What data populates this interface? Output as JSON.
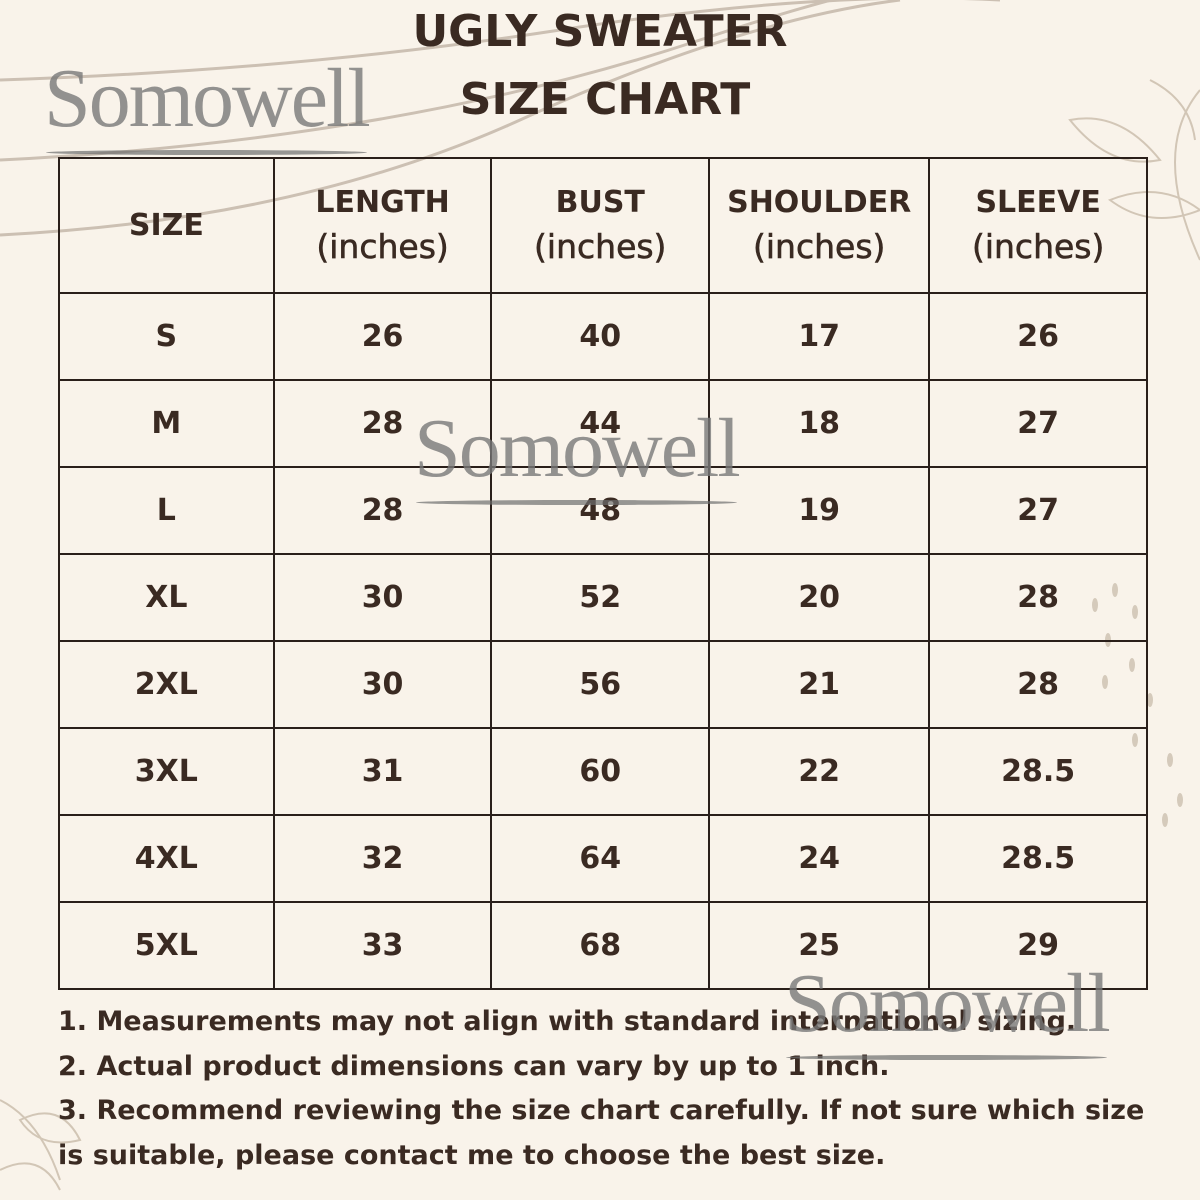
{
  "title_line1": "UGLY SWEATER",
  "title_line2": "SIZE CHART",
  "watermark": "Somowell",
  "colors": {
    "background": "#f9f3ea",
    "text": "#3a2a22",
    "watermark": "#808080"
  },
  "table": {
    "headers": [
      {
        "name": "SIZE",
        "unit": ""
      },
      {
        "name": "LENGTH",
        "unit": "(inches)"
      },
      {
        "name": "BUST",
        "unit": "(inches)"
      },
      {
        "name": "SHOULDER",
        "unit": "(inches)"
      },
      {
        "name": "SLEEVE",
        "unit": "(inches)"
      }
    ],
    "rows": [
      [
        "S",
        "26",
        "40",
        "17",
        "26"
      ],
      [
        "M",
        "28",
        "44",
        "18",
        "27"
      ],
      [
        "L",
        "28",
        "48",
        "19",
        "27"
      ],
      [
        "XL",
        "30",
        "52",
        "20",
        "28"
      ],
      [
        "2XL",
        "30",
        "56",
        "21",
        "28"
      ],
      [
        "3XL",
        "31",
        "60",
        "22",
        "28.5"
      ],
      [
        "4XL",
        "32",
        "64",
        "24",
        "28.5"
      ],
      [
        "5XL",
        "33",
        "68",
        "25",
        "29"
      ]
    ]
  },
  "notes": [
    "1. Measurements may not align with standard international sizing.",
    "2. Actual product dimensions can vary by up to 1 inch.",
    "3. Recommend reviewing the size chart carefully. If not sure which size is suitable, please contact me to choose the best size."
  ]
}
